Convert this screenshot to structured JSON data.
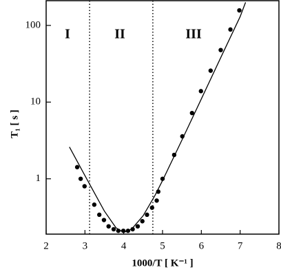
{
  "chart_data": {
    "type": "scatter",
    "x_label": "1000/T  [ K⁻¹ ]",
    "y_label": "T₁  [ s ]",
    "xlim": [
      2,
      8
    ],
    "ylim": [
      0.19,
      210
    ],
    "xticks": [
      2,
      3,
      4,
      5,
      6,
      7,
      8
    ],
    "yticks": [
      1,
      10,
      100
    ],
    "log_y": true,
    "vlines": [
      3.12,
      4.75
    ],
    "annotations": [
      {
        "text": "I",
        "x": 2.55,
        "y": 75
      },
      {
        "text": "II",
        "x": 3.9,
        "y": 75
      },
      {
        "text": "III",
        "x": 5.8,
        "y": 75
      }
    ],
    "series": [
      {
        "type": "scatter",
        "color": "#000000",
        "x": [
          2.8,
          2.89,
          2.99,
          3.24,
          3.37,
          3.49,
          3.61,
          3.74,
          3.86,
          3.99,
          4.11,
          4.23,
          4.36,
          4.48,
          4.6,
          4.73,
          4.85,
          4.89,
          5.0,
          5.3,
          5.51,
          5.76,
          5.99,
          6.24,
          6.5,
          6.75,
          6.98
        ],
        "values": [
          1.42,
          1.0,
          0.8,
          0.46,
          0.34,
          0.29,
          0.24,
          0.22,
          0.21,
          0.21,
          0.21,
          0.22,
          0.24,
          0.28,
          0.34,
          0.42,
          0.52,
          0.68,
          1.0,
          2.05,
          3.58,
          7.2,
          13.9,
          25.7,
          47.7,
          88.4,
          157
        ]
      },
      {
        "type": "line",
        "color": "#000000",
        "x": [
          2.6,
          3.0,
          3.5,
          3.8,
          4.0,
          4.2,
          4.5,
          4.8,
          5.0,
          5.5,
          6.0,
          6.5,
          7.0,
          7.14
        ],
        "values": [
          2.6,
          1.1,
          0.38,
          0.23,
          0.2,
          0.22,
          0.33,
          0.6,
          0.95,
          3.2,
          11,
          38,
          130,
          200
        ]
      }
    ]
  }
}
